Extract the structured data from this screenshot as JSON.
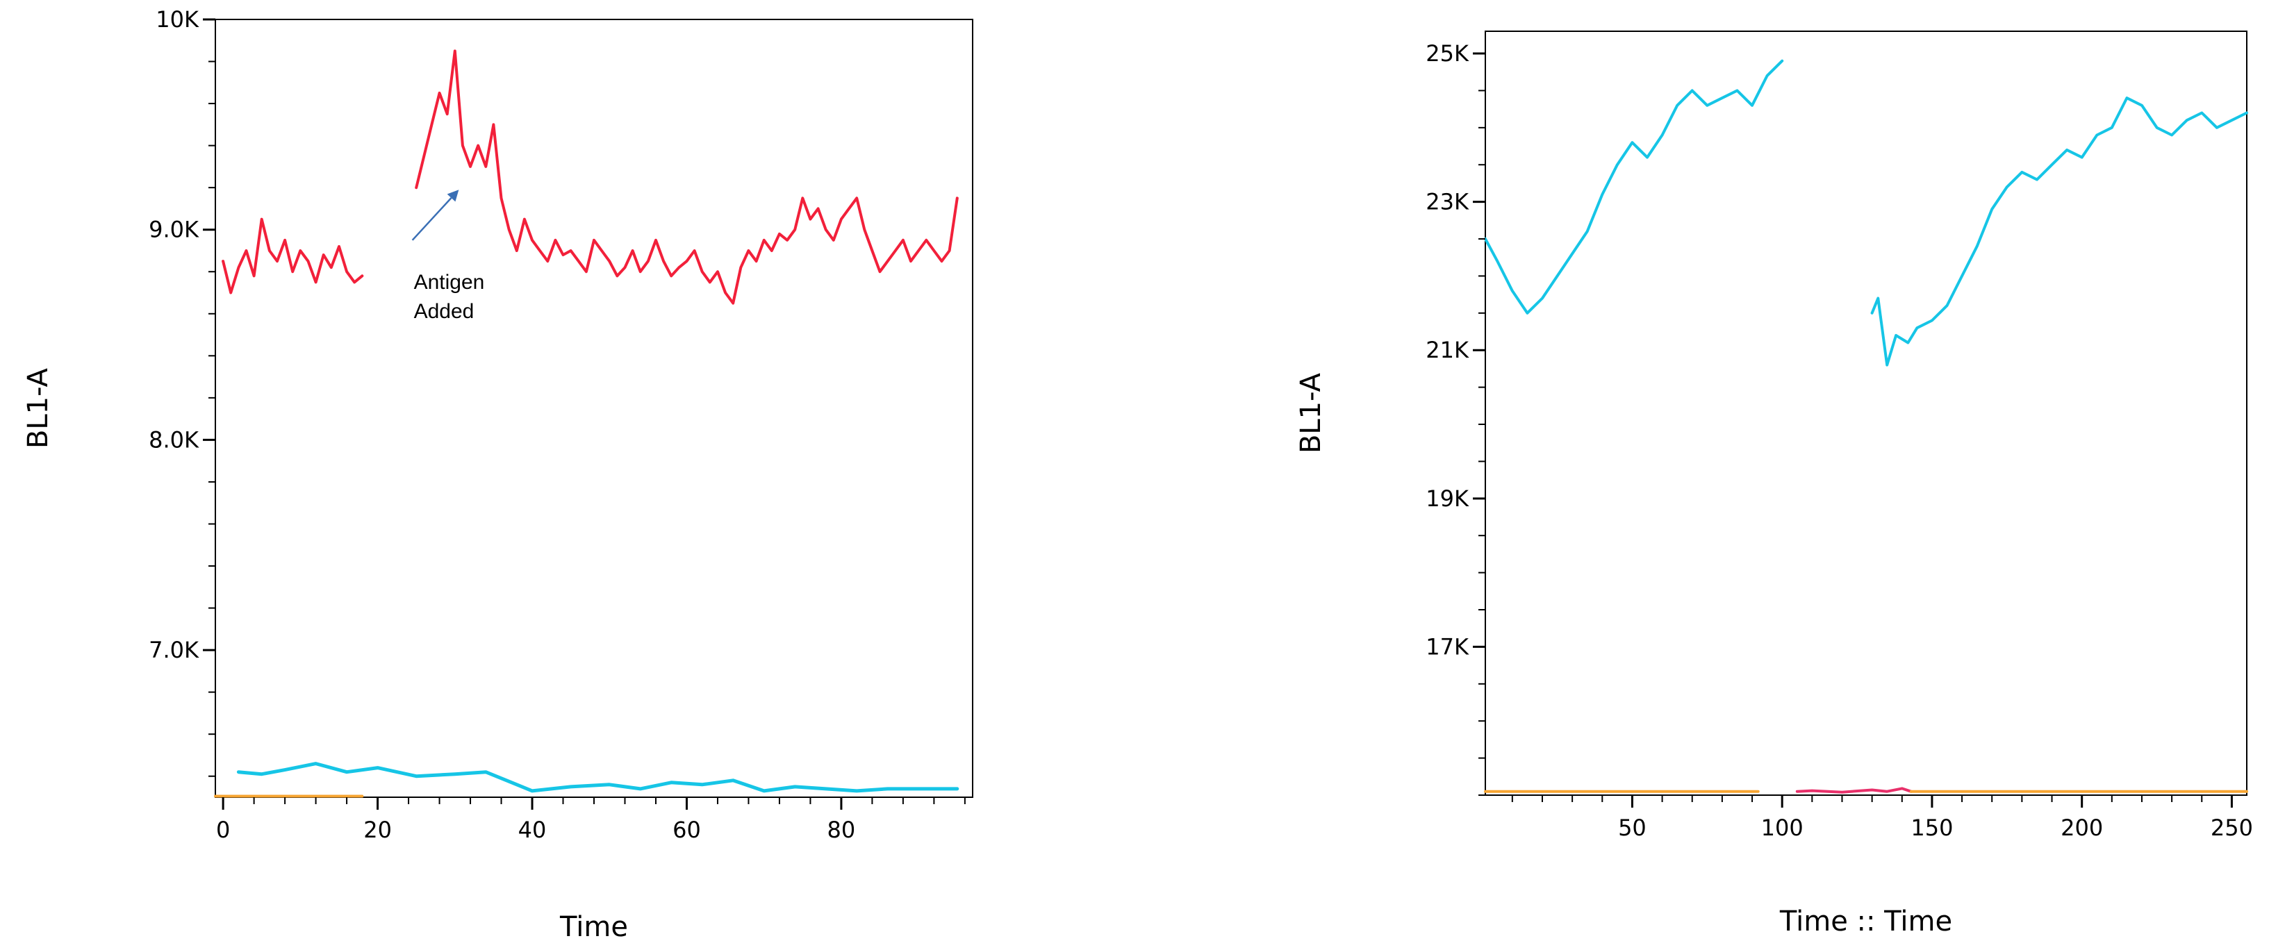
{
  "chart_data": [
    {
      "type": "line",
      "title": "",
      "xlabel": "Time",
      "ylabel": "BL1-A",
      "xlim": [
        -1,
        97
      ],
      "ylim": [
        6300,
        10000
      ],
      "x_ticks": [
        0,
        20,
        40,
        60,
        80
      ],
      "x_tick_labels": [
        "0",
        "20",
        "40",
        "60",
        "80"
      ],
      "y_ticks": [
        7000,
        8000,
        9000,
        10000
      ],
      "y_tick_labels": [
        "7.0K",
        "8.0K",
        "9.0K",
        "10K"
      ],
      "grid": false,
      "legend": "none",
      "annotation": {
        "lines": [
          "Antigen",
          "Added"
        ],
        "arrow_from": [
          24.5,
          8950
        ],
        "arrow_to": [
          30.5,
          9190
        ]
      },
      "series": [
        {
          "color": "#f2203a",
          "x": [
            0,
            1,
            2,
            3,
            4,
            5,
            6,
            7,
            8,
            9,
            10,
            11,
            12,
            13,
            14,
            15,
            16,
            17,
            18
          ],
          "y": [
            8850,
            8700,
            8820,
            8900,
            8780,
            9050,
            8900,
            8850,
            8950,
            8800,
            8900,
            8850,
            8750,
            8880,
            8820,
            8920,
            8800,
            8750,
            8780
          ],
          "gaps_after": []
        },
        {
          "color": "#f2203a",
          "x": [
            25,
            26,
            27,
            28,
            29,
            30,
            31,
            32,
            33,
            34,
            35,
            36,
            37,
            38,
            39,
            40,
            41,
            42,
            43,
            44,
            45,
            46,
            47,
            48,
            49,
            50,
            51,
            52,
            53,
            54,
            55,
            56,
            57,
            58,
            59,
            60,
            61,
            62,
            63,
            64,
            65,
            66,
            67,
            68,
            69,
            70,
            71,
            72,
            73,
            74,
            75,
            76,
            77,
            78,
            79,
            80,
            81,
            82,
            83,
            84,
            85,
            86,
            87,
            88,
            89,
            90,
            91,
            92,
            93,
            94,
            95
          ],
          "y": [
            9200,
            9350,
            9500,
            9650,
            9550,
            9850,
            9400,
            9300,
            9400,
            9300,
            9500,
            9150,
            9000,
            8900,
            9050,
            8950,
            8900,
            8850,
            8950,
            8880,
            8900,
            8850,
            8800,
            8950,
            8900,
            8850,
            8780,
            8820,
            8900,
            8800,
            8850,
            8950,
            8850,
            8780,
            8820,
            8850,
            8900,
            8800,
            8750,
            8800,
            8700,
            8650,
            8820,
            8900,
            8850,
            8950,
            8900,
            8980,
            8950,
            9000,
            9150,
            9050,
            9100,
            9000,
            8950,
            9050,
            9100,
            9150,
            9000,
            8900,
            8800,
            8850,
            8900,
            8950,
            8850,
            8900,
            8950,
            8900,
            8850,
            8900,
            9150
          ],
          "gaps_after": []
        },
        {
          "color": "#16c5e6",
          "x": [
            2,
            5,
            8,
            12,
            16,
            20,
            25,
            30,
            34,
            38,
            40,
            45,
            50,
            54,
            58,
            62,
            66,
            70,
            74,
            78,
            82,
            86,
            90,
            95
          ],
          "y": [
            6420,
            6410,
            6430,
            6460,
            6420,
            6440,
            6400,
            6410,
            6420,
            6360,
            6330,
            6350,
            6360,
            6340,
            6370,
            6360,
            6380,
            6330,
            6350,
            6340,
            6330,
            6340,
            6340,
            6340
          ],
          "gaps_after": []
        },
        {
          "color": "#f7a532",
          "x": [
            -1,
            18
          ],
          "y": [
            6305,
            6305
          ],
          "gaps_after": []
        }
      ]
    },
    {
      "type": "line",
      "title": "",
      "xlabel": "Time :: Time",
      "ylabel": "BL1-A",
      "xlim": [
        1,
        255
      ],
      "ylim": [
        15000,
        25300
      ],
      "x_ticks": [
        50,
        100,
        150,
        200,
        250
      ],
      "x_tick_labels": [
        "50",
        "100",
        "150",
        "200",
        "250"
      ],
      "y_ticks": [
        17000,
        19000,
        21000,
        23000,
        25000
      ],
      "y_tick_labels": [
        "17K",
        "19K",
        "21K",
        "23K",
        "25K"
      ],
      "grid": false,
      "legend": "none",
      "series": [
        {
          "color": "#16c5e6",
          "x": [
            1,
            5,
            10,
            15,
            20,
            25,
            30,
            35,
            40,
            45,
            50,
            55,
            60,
            65,
            70,
            75,
            80,
            85,
            90,
            95,
            100
          ],
          "y": [
            22500,
            22200,
            21800,
            21500,
            21700,
            22000,
            22300,
            22600,
            23100,
            23500,
            23800,
            23600,
            23900,
            24300,
            24500,
            24300,
            24400,
            24500,
            24300,
            24700,
            24900
          ],
          "gaps_after": []
        },
        {
          "color": "#16c5e6",
          "x": [
            130,
            132,
            135,
            138,
            142,
            145,
            150,
            155,
            160,
            165,
            170,
            175,
            180,
            185,
            190,
            195,
            200,
            205,
            210,
            215,
            220,
            225,
            230,
            235,
            240,
            245,
            250,
            255
          ],
          "y": [
            21500,
            21700,
            20800,
            21200,
            21100,
            21300,
            21400,
            21600,
            22000,
            22400,
            22900,
            23200,
            23400,
            23300,
            23500,
            23700,
            23600,
            23900,
            24000,
            24400,
            24300,
            24000,
            23900,
            24100,
            24200,
            24000,
            24100,
            24200
          ],
          "gaps_after": []
        },
        {
          "color": "#f7a532",
          "x": [
            1,
            92
          ],
          "y": [
            15050,
            15050
          ],
          "gaps_after": []
        },
        {
          "color": "#e8306a",
          "x": [
            105,
            110,
            120,
            130,
            135,
            140,
            143
          ],
          "y": [
            15050,
            15060,
            15040,
            15070,
            15050,
            15090,
            15050
          ],
          "gaps_after": []
        },
        {
          "color": "#f7a532",
          "x": [
            143,
            255
          ],
          "y": [
            15050,
            15050
          ],
          "gaps_after": []
        }
      ]
    }
  ]
}
